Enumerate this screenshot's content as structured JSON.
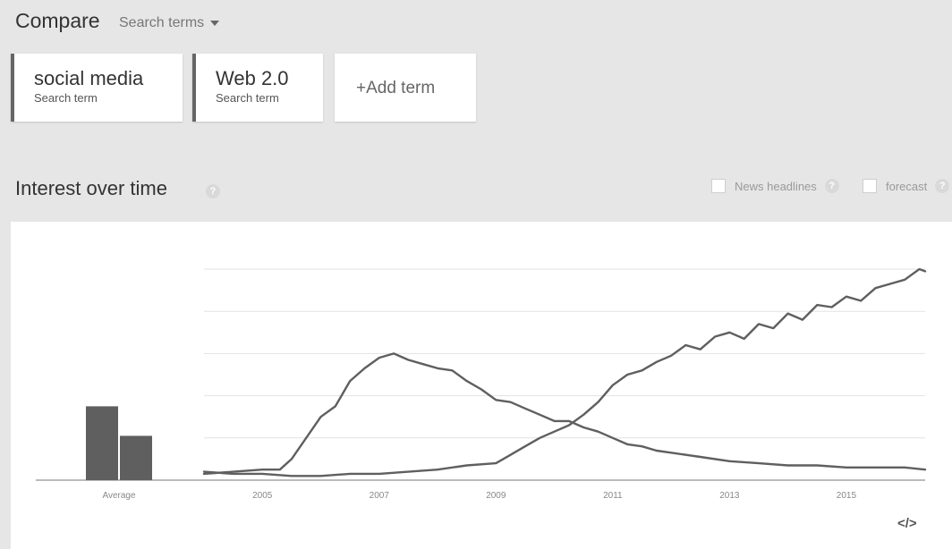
{
  "header": {
    "title": "Compare",
    "subtitle": "Search terms",
    "terms": [
      {
        "name": "social media",
        "kind": "Search term"
      },
      {
        "name": "Web 2.0",
        "kind": "Search term"
      }
    ],
    "add_term_label": "+Add term"
  },
  "section": {
    "title": "Interest over time",
    "help_glyph": "?",
    "options": [
      {
        "label": "News headlines",
        "checked": false
      },
      {
        "label": "forecast",
        "checked": false
      }
    ]
  },
  "embed_label": "</>",
  "colors": {
    "series": "#5f5f5f",
    "grid": "#e2e2e2",
    "axis": "#777777"
  },
  "chart_data": {
    "type": "line",
    "xlabel": "",
    "ylabel": "",
    "ylim": [
      0,
      100
    ],
    "grid": true,
    "x_ticks": [
      "2005",
      "2007",
      "2009",
      "2011",
      "2013",
      "2015"
    ],
    "average": {
      "label": "Average",
      "values": [
        35,
        21
      ]
    },
    "series": [
      {
        "name": "social media",
        "points": [
          [
            2004.0,
            4
          ],
          [
            2004.5,
            3
          ],
          [
            2005.0,
            3
          ],
          [
            2005.5,
            2
          ],
          [
            2006.0,
            2
          ],
          [
            2006.5,
            3
          ],
          [
            2007.0,
            3
          ],
          [
            2007.5,
            4
          ],
          [
            2008.0,
            5
          ],
          [
            2008.5,
            7
          ],
          [
            2009.0,
            8
          ],
          [
            2009.25,
            12
          ],
          [
            2009.5,
            16
          ],
          [
            2009.75,
            20
          ],
          [
            2010.0,
            23
          ],
          [
            2010.25,
            26
          ],
          [
            2010.5,
            31
          ],
          [
            2010.75,
            37
          ],
          [
            2011.0,
            45
          ],
          [
            2011.25,
            50
          ],
          [
            2011.5,
            52
          ],
          [
            2011.75,
            56
          ],
          [
            2012.0,
            59
          ],
          [
            2012.25,
            64
          ],
          [
            2012.5,
            62
          ],
          [
            2012.75,
            68
          ],
          [
            2013.0,
            70
          ],
          [
            2013.25,
            67
          ],
          [
            2013.5,
            74
          ],
          [
            2013.75,
            72
          ],
          [
            2014.0,
            79
          ],
          [
            2014.25,
            76
          ],
          [
            2014.5,
            83
          ],
          [
            2014.75,
            82
          ],
          [
            2015.0,
            87
          ],
          [
            2015.25,
            85
          ],
          [
            2015.5,
            91
          ],
          [
            2015.75,
            93
          ],
          [
            2016.0,
            95
          ],
          [
            2016.25,
            100
          ],
          [
            2016.35,
            99
          ]
        ]
      },
      {
        "name": "Web 2.0",
        "points": [
          [
            2004.0,
            3
          ],
          [
            2004.5,
            4
          ],
          [
            2005.0,
            5
          ],
          [
            2005.3,
            5
          ],
          [
            2005.5,
            10
          ],
          [
            2005.75,
            20
          ],
          [
            2006.0,
            30
          ],
          [
            2006.25,
            35
          ],
          [
            2006.5,
            47
          ],
          [
            2006.75,
            53
          ],
          [
            2007.0,
            58
          ],
          [
            2007.25,
            60
          ],
          [
            2007.5,
            57
          ],
          [
            2007.75,
            55
          ],
          [
            2008.0,
            53
          ],
          [
            2008.25,
            52
          ],
          [
            2008.5,
            47
          ],
          [
            2008.75,
            43
          ],
          [
            2009.0,
            38
          ],
          [
            2009.25,
            37
          ],
          [
            2009.5,
            34
          ],
          [
            2009.75,
            31
          ],
          [
            2010.0,
            28
          ],
          [
            2010.25,
            28
          ],
          [
            2010.5,
            25
          ],
          [
            2010.75,
            23
          ],
          [
            2011.0,
            20
          ],
          [
            2011.25,
            17
          ],
          [
            2011.5,
            16
          ],
          [
            2011.75,
            14
          ],
          [
            2012.0,
            13
          ],
          [
            2012.5,
            11
          ],
          [
            2013.0,
            9
          ],
          [
            2013.5,
            8
          ],
          [
            2014.0,
            7
          ],
          [
            2014.5,
            7
          ],
          [
            2015.0,
            6
          ],
          [
            2015.5,
            6
          ],
          [
            2016.0,
            6
          ],
          [
            2016.35,
            5
          ]
        ]
      }
    ]
  }
}
